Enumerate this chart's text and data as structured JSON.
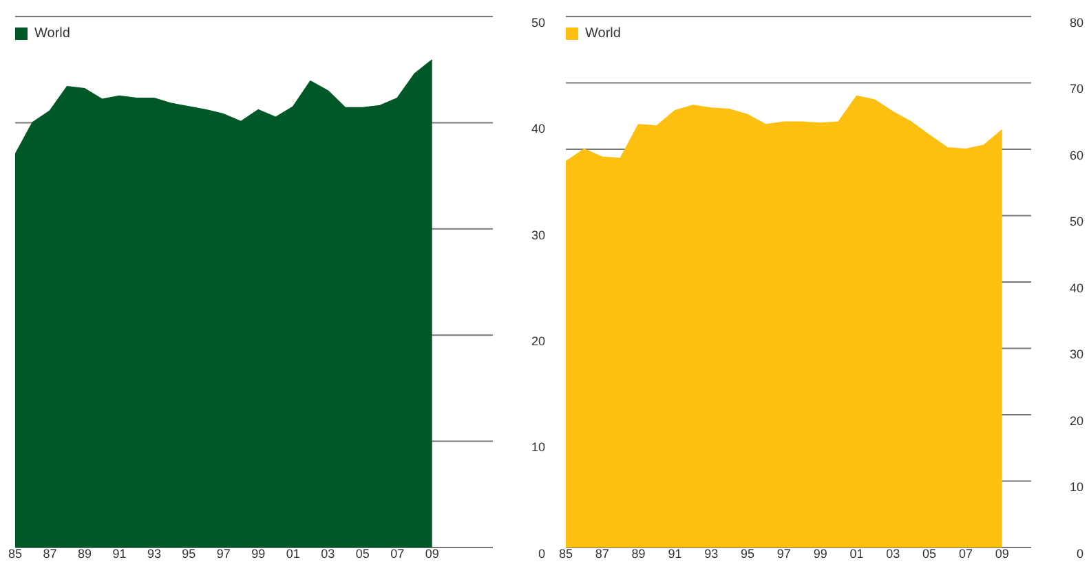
{
  "chart_data": [
    {
      "type": "area",
      "x": [
        1985,
        1986,
        1987,
        1988,
        1989,
        1990,
        1991,
        1992,
        1993,
        1994,
        1995,
        1996,
        1997,
        1998,
        1999,
        2000,
        2001,
        2002,
        2003,
        2004,
        2005,
        2006,
        2007,
        2008,
        2009
      ],
      "series": [
        {
          "name": "World",
          "color": "#005828",
          "values": [
            37.0,
            40.0,
            41.1,
            43.4,
            43.2,
            42.2,
            42.5,
            42.3,
            42.3,
            41.8,
            41.5,
            41.2,
            40.8,
            40.1,
            41.2,
            40.5,
            41.5,
            43.9,
            43.0,
            41.4,
            41.4,
            41.6,
            42.3,
            44.6,
            45.9
          ]
        }
      ],
      "xlim": [
        1985,
        2012.5
      ],
      "xticks": [
        {
          "value": 1985,
          "label": "85"
        },
        {
          "value": 1987,
          "label": "87"
        },
        {
          "value": 1989,
          "label": "89"
        },
        {
          "value": 1991,
          "label": "91"
        },
        {
          "value": 1993,
          "label": "93"
        },
        {
          "value": 1995,
          "label": "95"
        },
        {
          "value": 1997,
          "label": "97"
        },
        {
          "value": 1999,
          "label": "99"
        },
        {
          "value": 2001,
          "label": "01"
        },
        {
          "value": 2003,
          "label": "03"
        },
        {
          "value": 2005,
          "label": "05"
        },
        {
          "value": 2007,
          "label": "07"
        },
        {
          "value": 2009,
          "label": "09"
        }
      ],
      "ylim": [
        0,
        50
      ],
      "yticks": [
        0,
        10,
        20,
        30,
        40,
        50
      ],
      "grid": "y",
      "legend": "top left"
    },
    {
      "type": "area",
      "x": [
        1985,
        1986,
        1987,
        1988,
        1989,
        1990,
        1991,
        1992,
        1993,
        1994,
        1995,
        1996,
        1997,
        1998,
        1999,
        2000,
        2001,
        2002,
        2003,
        2004,
        2005,
        2006,
        2007,
        2008,
        2009
      ],
      "series": [
        {
          "name": "World",
          "color": "#fdc010",
          "values": [
            58.1,
            60.0,
            58.8,
            58.6,
            63.7,
            63.5,
            65.8,
            66.6,
            66.2,
            66.0,
            65.2,
            63.7,
            64.1,
            64.1,
            63.9,
            64.1,
            68.0,
            67.4,
            65.6,
            64.1,
            62.1,
            60.2,
            60.0,
            60.6,
            62.9
          ]
        }
      ],
      "xlim": [
        1985,
        2010.6
      ],
      "xticks": [
        {
          "value": 1985,
          "label": "85"
        },
        {
          "value": 1987,
          "label": "87"
        },
        {
          "value": 1989,
          "label": "89"
        },
        {
          "value": 1991,
          "label": "91"
        },
        {
          "value": 1993,
          "label": "93"
        },
        {
          "value": 1995,
          "label": "95"
        },
        {
          "value": 1997,
          "label": "97"
        },
        {
          "value": 1999,
          "label": "99"
        },
        {
          "value": 2001,
          "label": "01"
        },
        {
          "value": 2003,
          "label": "03"
        },
        {
          "value": 2005,
          "label": "05"
        },
        {
          "value": 2007,
          "label": "07"
        },
        {
          "value": 2009,
          "label": "09"
        }
      ],
      "ylim": [
        0,
        80
      ],
      "yticks": [
        0,
        10,
        20,
        30,
        40,
        50,
        60,
        70,
        80
      ],
      "grid": "y",
      "legend": "top left"
    }
  ]
}
